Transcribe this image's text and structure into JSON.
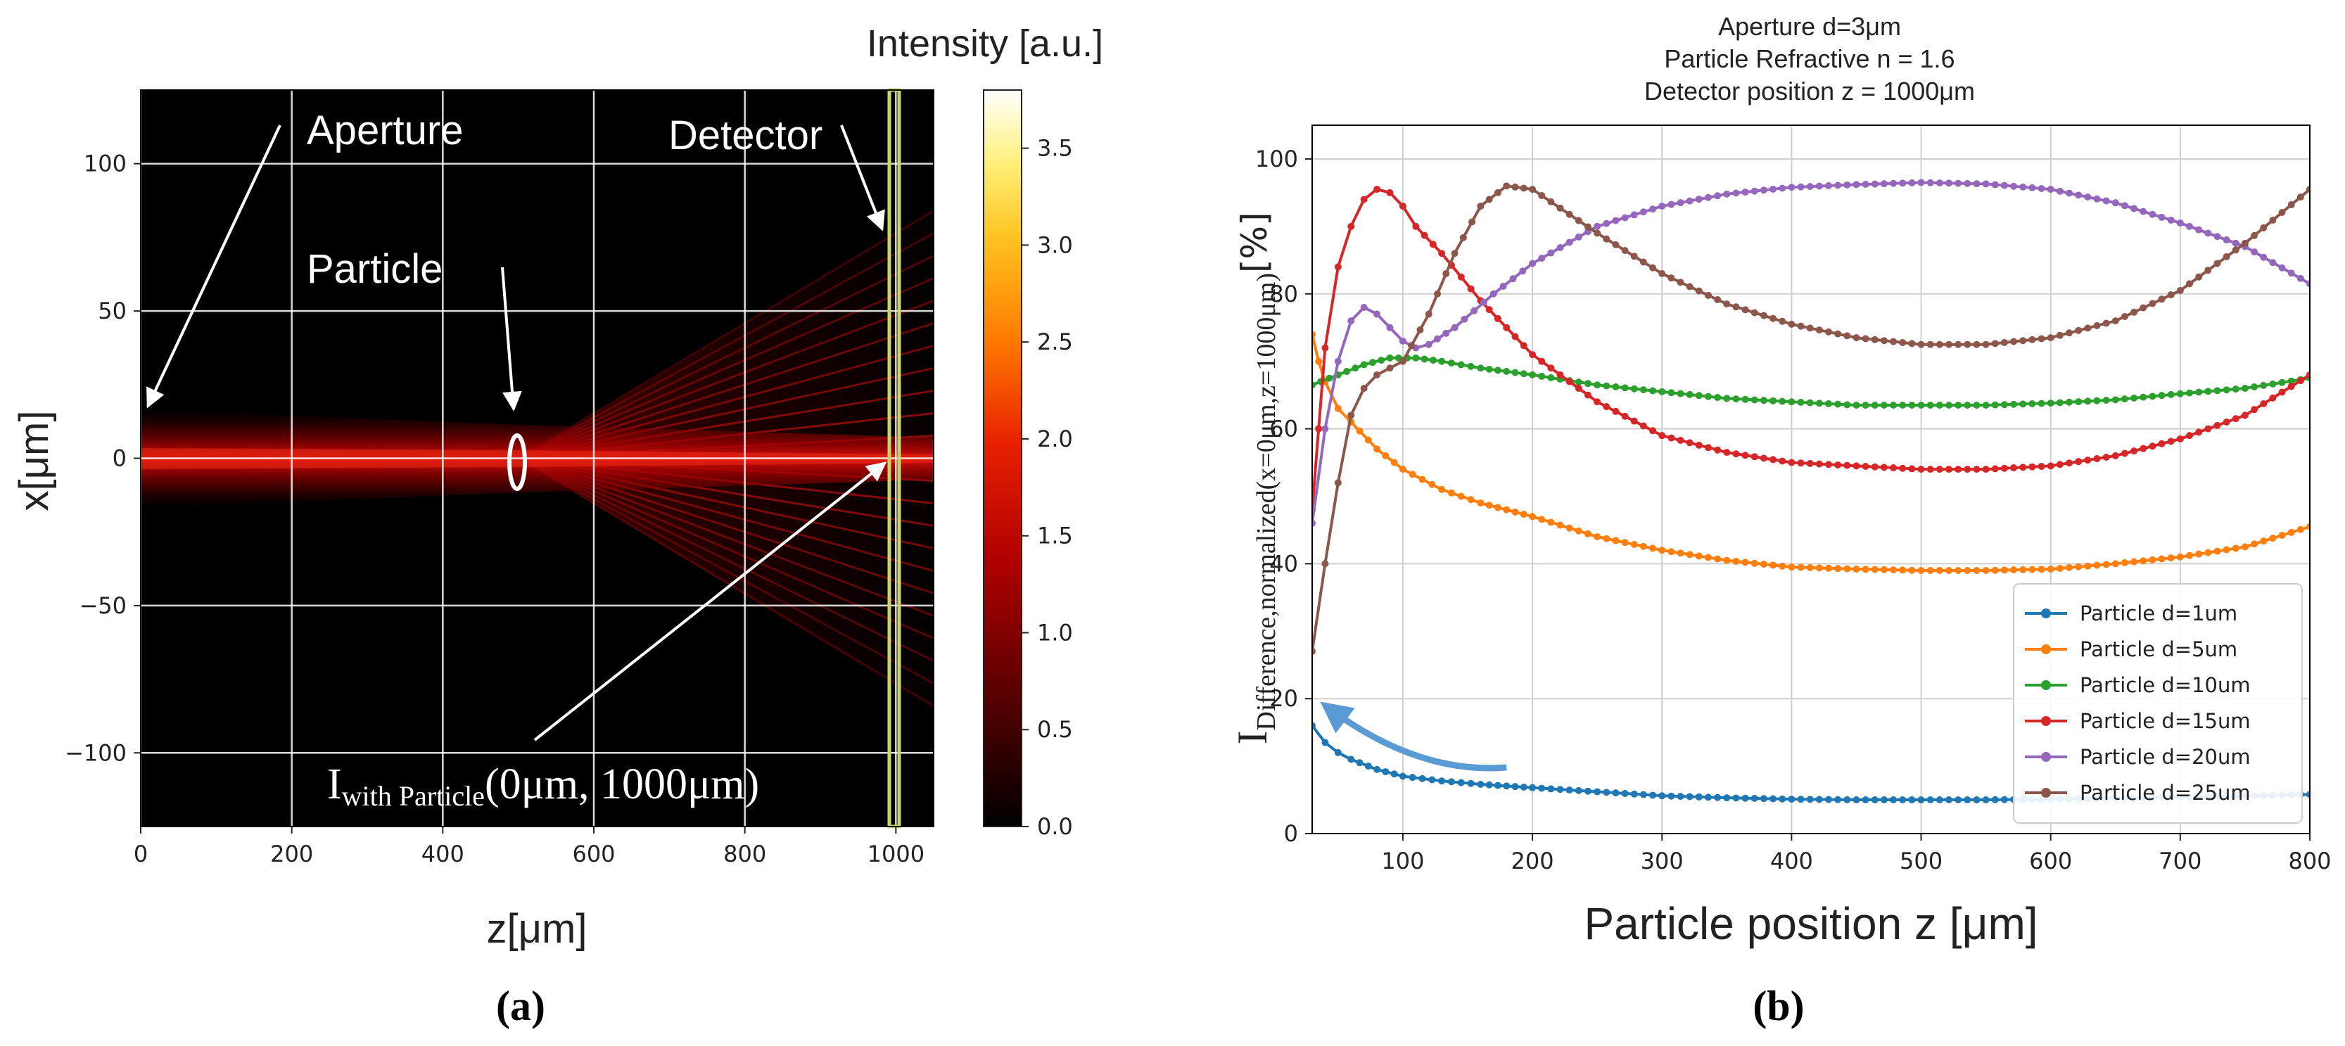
{
  "chart_data": [
    {
      "type": "heatmap",
      "panel_label": "a",
      "colorbar_title": "Intensity [a.u.]",
      "xlabel": "z[μm]",
      "ylabel": "x[μm]",
      "xlim": [
        0,
        1050
      ],
      "ylim": [
        -125,
        125
      ],
      "x_ticks": [
        0,
        200,
        400,
        600,
        800,
        1000
      ],
      "y_ticks": [
        100,
        50,
        0,
        -50,
        -100
      ],
      "y_tick_labels": [
        "100",
        "50",
        "0",
        "−50",
        "−100"
      ],
      "colorbar_range": [
        0,
        3.8
      ],
      "colorbar_ticks": [
        "0.0",
        "0.5",
        "1.0",
        "1.5",
        "2.0",
        "2.5",
        "3.0",
        "3.5"
      ],
      "colors": {
        "black": "#000000",
        "dark_red": "#8b0000",
        "red": "#e60000",
        "orange": "#ff8c00",
        "yellow": "#ffee55",
        "white": "#ffffff",
        "detector": "#c7d66b"
      },
      "annotations": {
        "aperture": "Aperture",
        "particle": "Particle",
        "detector": "Detector",
        "intensity_main": "I",
        "intensity_sub": "with Particle",
        "intensity_arg": "(0μm, 1000μm)"
      },
      "particle_position": {
        "z": 500,
        "x": 0
      },
      "detector_position_z": 1000
    },
    {
      "type": "line",
      "panel_label": "b",
      "title_lines": [
        "Aperture d=3μm",
        "Particle Refractive n = 1.6",
        "Detector position z = 1000μm"
      ],
      "xlabel": "Particle position z [μm]",
      "ylabel_main": "I",
      "ylabel_sub": "Difference,normalized(x=0μm,z=1000μm)",
      "ylabel_unit": "[%]",
      "xlim": [
        30,
        800
      ],
      "ylim": [
        0,
        105
      ],
      "x_ticks": [
        100,
        200,
        300,
        400,
        500,
        600,
        700,
        800
      ],
      "y_ticks": [
        0,
        20,
        40,
        60,
        80,
        100
      ],
      "grid": true,
      "legend_position": "bottom-right",
      "series": [
        {
          "name": "Particle d=1um",
          "color": "#1f77b4",
          "points": [
            [
              30,
              16
            ],
            [
              40,
              13.5
            ],
            [
              50,
              12
            ],
            [
              60,
              11
            ],
            [
              80,
              9.5
            ],
            [
              100,
              8.5
            ],
            [
              130,
              7.8
            ],
            [
              160,
              7.3
            ],
            [
              200,
              6.8
            ],
            [
              250,
              6.2
            ],
            [
              300,
              5.6
            ],
            [
              350,
              5.3
            ],
            [
              400,
              5.1
            ],
            [
              450,
              5.0
            ],
            [
              500,
              5.0
            ],
            [
              550,
              5.0
            ],
            [
              600,
              5.1
            ],
            [
              650,
              5.2
            ],
            [
              700,
              5.4
            ],
            [
              750,
              5.6
            ],
            [
              800,
              5.8
            ]
          ]
        },
        {
          "name": "Particle d=5um",
          "color": "#ff7f0e",
          "points": [
            [
              30,
              74
            ],
            [
              35,
              70
            ],
            [
              40,
              67
            ],
            [
              50,
              63
            ],
            [
              60,
              61
            ],
            [
              80,
              57
            ],
            [
              100,
              54
            ],
            [
              130,
              51
            ],
            [
              160,
              49
            ],
            [
              200,
              47
            ],
            [
              250,
              44
            ],
            [
              300,
              42
            ],
            [
              350,
              40.5
            ],
            [
              400,
              39.5
            ],
            [
              450,
              39.2
            ],
            [
              500,
              39
            ],
            [
              550,
              39
            ],
            [
              600,
              39.2
            ],
            [
              650,
              40
            ],
            [
              700,
              41
            ],
            [
              750,
              42.5
            ],
            [
              800,
              45.5
            ]
          ]
        },
        {
          "name": "Particle d=10um",
          "color": "#2ca02c",
          "points": [
            [
              30,
              66.5
            ],
            [
              50,
              68
            ],
            [
              70,
              69.5
            ],
            [
              90,
              70.5
            ],
            [
              110,
              70.5
            ],
            [
              130,
              70
            ],
            [
              160,
              69
            ],
            [
              200,
              68
            ],
            [
              250,
              66.5
            ],
            [
              300,
              65.5
            ],
            [
              350,
              64.5
            ],
            [
              400,
              64
            ],
            [
              450,
              63.5
            ],
            [
              500,
              63.5
            ],
            [
              550,
              63.5
            ],
            [
              600,
              63.8
            ],
            [
              650,
              64.3
            ],
            [
              700,
              65.2
            ],
            [
              750,
              66
            ],
            [
              800,
              67.5
            ]
          ]
        },
        {
          "name": "Particle d=15um",
          "color": "#d62728",
          "points": [
            [
              30,
              48
            ],
            [
              35,
              60
            ],
            [
              40,
              72
            ],
            [
              50,
              84
            ],
            [
              60,
              90
            ],
            [
              70,
              94
            ],
            [
              80,
              95.5
            ],
            [
              90,
              95
            ],
            [
              100,
              93
            ],
            [
              110,
              90
            ],
            [
              130,
              86
            ],
            [
              160,
              79
            ],
            [
              200,
              71
            ],
            [
              250,
              64
            ],
            [
              300,
              59
            ],
            [
              350,
              56.5
            ],
            [
              400,
              55
            ],
            [
              450,
              54.5
            ],
            [
              500,
              54
            ],
            [
              550,
              54
            ],
            [
              600,
              54.5
            ],
            [
              650,
              56
            ],
            [
              700,
              58.5
            ],
            [
              750,
              62
            ],
            [
              800,
              68
            ]
          ]
        },
        {
          "name": "Particle d=20um",
          "color": "#9467bd",
          "points": [
            [
              30,
              46
            ],
            [
              40,
              60
            ],
            [
              50,
              70
            ],
            [
              60,
              76
            ],
            [
              70,
              78
            ],
            [
              80,
              77
            ],
            [
              90,
              75
            ],
            [
              100,
              73
            ],
            [
              110,
              72
            ],
            [
              120,
              72.5
            ],
            [
              140,
              75
            ],
            [
              170,
              80
            ],
            [
              200,
              84.5
            ],
            [
              250,
              90
            ],
            [
              300,
              93
            ],
            [
              350,
              94.8
            ],
            [
              400,
              95.8
            ],
            [
              450,
              96.2
            ],
            [
              500,
              96.5
            ],
            [
              550,
              96.3
            ],
            [
              600,
              95.5
            ],
            [
              650,
              93.5
            ],
            [
              700,
              90.5
            ],
            [
              750,
              87
            ],
            [
              800,
              81.5
            ]
          ]
        },
        {
          "name": "Particle d=25um",
          "color": "#8c564b",
          "points": [
            [
              30,
              27
            ],
            [
              40,
              40
            ],
            [
              50,
              52
            ],
            [
              60,
              62
            ],
            [
              70,
              66
            ],
            [
              80,
              68
            ],
            [
              90,
              69
            ],
            [
              100,
              70
            ],
            [
              120,
              77
            ],
            [
              140,
              86
            ],
            [
              160,
              93
            ],
            [
              180,
              96
            ],
            [
              200,
              95.5
            ],
            [
              250,
              89
            ],
            [
              300,
              83
            ],
            [
              350,
              78.5
            ],
            [
              400,
              75.5
            ],
            [
              450,
              73.5
            ],
            [
              500,
              72.5
            ],
            [
              550,
              72.5
            ],
            [
              600,
              73.5
            ],
            [
              650,
              76
            ],
            [
              700,
              80.5
            ],
            [
              750,
              87.5
            ],
            [
              800,
              95.5
            ]
          ]
        }
      ],
      "arrow": {
        "color": "#5b9bd5",
        "from": [
          180,
          9.8
        ],
        "to": [
          40,
          19
        ]
      }
    }
  ],
  "caption_a": "(a)",
  "caption_b": "(b)"
}
